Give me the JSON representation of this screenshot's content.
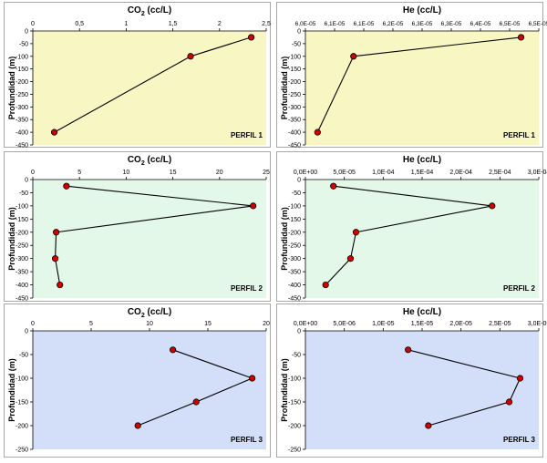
{
  "style": {
    "bg_yellow": "#f8f6c3",
    "bg_green": "#e3f8e9",
    "bg_blue": "#d3def8",
    "marker_fill": "#d40000",
    "line_color": "#000000"
  },
  "chart_data": [
    {
      "type": "line",
      "title_main": "CO",
      "title_sub": "2",
      "title_rest": " (cc/L)",
      "ylabel": "Profundidad (m)",
      "label": "PERFIL 1",
      "xlim": [
        0,
        2.5
      ],
      "x_ticks": [
        "0",
        "0,5",
        "1",
        "1,5",
        "2",
        "2,5"
      ],
      "ylim": [
        -450,
        0
      ],
      "y_ticks": [
        "0",
        "-50",
        "-100",
        "-150",
        "-200",
        "-250",
        "-300",
        "-350",
        "-400",
        "-450"
      ],
      "points": [
        {
          "x": 2.34,
          "y": -25
        },
        {
          "x": 1.69,
          "y": -100
        },
        {
          "x": 0.23,
          "y": -400
        }
      ]
    },
    {
      "type": "line",
      "title_main": "He (cc/L)",
      "title_sub": "",
      "title_rest": "",
      "ylabel": "Profundidad (m)",
      "label": "PERFIL 1",
      "xlim": [
        6e-05,
        6.5e-05
      ],
      "x_ticks": [
        "6,0E-05",
        "6,1E-05",
        "6,1E-05",
        "6,2E-05",
        "6,3E-05",
        "6,3E-05",
        "6,4E-05",
        "6,5E-05",
        "6,5E-05"
      ],
      "ylim": [
        -450,
        0
      ],
      "y_ticks": [
        "0",
        "-50",
        "-100",
        "-150",
        "-200",
        "-250",
        "-300",
        "-350",
        "-400",
        "-450"
      ],
      "points": [
        {
          "x": 6.462e-05,
          "y": -25
        },
        {
          "x": 6.103e-05,
          "y": -100
        },
        {
          "x": 6.026e-05,
          "y": -400
        }
      ]
    },
    {
      "type": "line",
      "title_main": "CO",
      "title_sub": "2",
      "title_rest": " (cc/L)",
      "ylabel": "Profundidad (m)",
      "label": "PERFIL 2",
      "xlim": [
        0,
        25
      ],
      "x_ticks": [
        "0",
        "5",
        "10",
        "15",
        "20",
        "25"
      ],
      "ylim": [
        -450,
        0
      ],
      "y_ticks": [
        "0",
        "-50",
        "-100",
        "-150",
        "-200",
        "-250",
        "-300",
        "-350",
        "-400",
        "-450"
      ],
      "points": [
        {
          "x": 3.6,
          "y": -25
        },
        {
          "x": 23.6,
          "y": -100
        },
        {
          "x": 2.5,
          "y": -200
        },
        {
          "x": 2.4,
          "y": -300
        },
        {
          "x": 2.9,
          "y": -400
        }
      ]
    },
    {
      "type": "line",
      "title_main": "He (cc/L)",
      "title_sub": "",
      "title_rest": "",
      "ylabel": "Profundidad (m)",
      "label": "PERFIL 2",
      "xlim": [
        0,
        0.0003
      ],
      "x_ticks": [
        "0,0E+00",
        "5,0E-05",
        "1,0E-04",
        "1,5E-04",
        "2,0E-04",
        "2,5E-04",
        "3,0E-04"
      ],
      "ylim": [
        -450,
        0
      ],
      "y_ticks": [
        "0",
        "-50",
        "-100",
        "-150",
        "-200",
        "-250",
        "-300",
        "-350",
        "-400",
        "-450"
      ],
      "points": [
        {
          "x": 3.6e-05,
          "y": -25
        },
        {
          "x": 0.00024,
          "y": -100
        },
        {
          "x": 6.5e-05,
          "y": -200
        },
        {
          "x": 5.8e-05,
          "y": -300
        },
        {
          "x": 2.6e-05,
          "y": -400
        }
      ]
    },
    {
      "type": "line",
      "title_main": "CO",
      "title_sub": "2",
      "title_rest": " (cc/L)",
      "ylabel": "Profundidad (m)",
      "label": "PERFIL 3",
      "xlim": [
        0,
        20
      ],
      "x_ticks": [
        "0",
        "5",
        "10",
        "15",
        "20"
      ],
      "ylim": [
        -250,
        0
      ],
      "y_ticks": [
        "0",
        "-50",
        "-100",
        "-150",
        "-200",
        "-250"
      ],
      "points": [
        {
          "x": 12.0,
          "y": -40
        },
        {
          "x": 18.8,
          "y": -100
        },
        {
          "x": 14.0,
          "y": -150
        },
        {
          "x": 9.0,
          "y": -200
        }
      ]
    },
    {
      "type": "line",
      "title_main": "He (cc/L)",
      "title_sub": "",
      "title_rest": "",
      "ylabel": "Profundidad (m)",
      "label": "PERFIL 3",
      "xlim": [
        0,
        3e-05
      ],
      "x_ticks": [
        "0,0E+00",
        "5,0E-06",
        "1,0E-05",
        "1,5E-05",
        "2,0E-05",
        "2,5E-05",
        "3,0E-05"
      ],
      "ylim": [
        -250,
        0
      ],
      "y_ticks": [
        "0",
        "-50",
        "-100",
        "-150",
        "-200",
        "-250"
      ],
      "points": [
        {
          "x": 1.32e-05,
          "y": -40
        },
        {
          "x": 2.76e-05,
          "y": -100
        },
        {
          "x": 2.62e-05,
          "y": -150
        },
        {
          "x": 1.58e-05,
          "y": -200
        }
      ]
    }
  ]
}
